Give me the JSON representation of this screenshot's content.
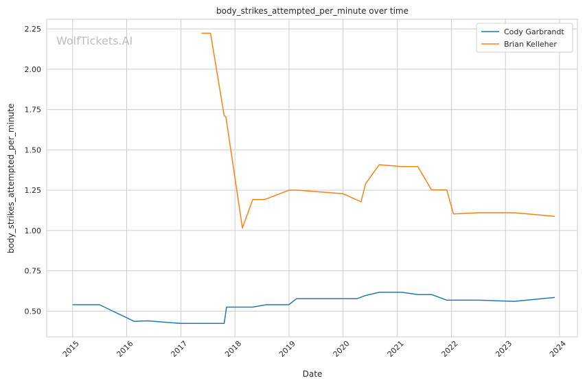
{
  "watermark": "WolfTickets.AI",
  "chart_data": {
    "type": "line",
    "title": "body_strikes_attempted_per_minute over time",
    "xlabel": "Date",
    "ylabel": "body_strikes_attempted_per_minute",
    "xlim": [
      "2014-07-10",
      "2024-05-01"
    ],
    "ylim": [
      0.34,
      2.31
    ],
    "x_ticks": [
      "2015",
      "2016",
      "2017",
      "2018",
      "2019",
      "2020",
      "2021",
      "2022",
      "2023",
      "2024"
    ],
    "y_ticks": [
      "0.50",
      "0.75",
      "1.00",
      "1.25",
      "1.50",
      "1.75",
      "2.00",
      "2.25"
    ],
    "grid": true,
    "legend_position": "top-right",
    "series": [
      {
        "name": "Cody Garbrandt",
        "color": "#1f77b4",
        "points": [
          [
            "2015-01-01",
            0.54
          ],
          [
            "2015-07-01",
            0.54
          ],
          [
            "2016-02-20",
            0.437
          ],
          [
            "2016-05-20",
            0.44
          ],
          [
            "2017-01-01",
            0.424
          ],
          [
            "2017-10-20",
            0.424
          ],
          [
            "2017-11-05",
            0.525
          ],
          [
            "2018-05-01",
            0.525
          ],
          [
            "2018-08-01",
            0.54
          ],
          [
            "2018-12-31",
            0.54
          ],
          [
            "2019-02-20",
            0.577
          ],
          [
            "2020-04-01",
            0.577
          ],
          [
            "2020-06-01",
            0.597
          ],
          [
            "2020-09-01",
            0.617
          ],
          [
            "2021-02-01",
            0.617
          ],
          [
            "2021-05-20",
            0.603
          ],
          [
            "2021-08-20",
            0.603
          ],
          [
            "2021-12-01",
            0.568
          ],
          [
            "2022-07-01",
            0.568
          ],
          [
            "2023-03-01",
            0.561
          ],
          [
            "2023-11-30",
            0.585
          ]
        ]
      },
      {
        "name": "Brian Kelleher",
        "color": "#ff7f0e",
        "points": [
          [
            "2017-05-20",
            2.223
          ],
          [
            "2017-07-20",
            2.223
          ],
          [
            "2017-10-20",
            1.712
          ],
          [
            "2017-11-01",
            1.705
          ],
          [
            "2018-02-20",
            1.016
          ],
          [
            "2018-05-01",
            1.192
          ],
          [
            "2018-07-20",
            1.192
          ],
          [
            "2019-01-01",
            1.25
          ],
          [
            "2019-03-01",
            1.25
          ],
          [
            "2020-01-01",
            1.228
          ],
          [
            "2020-05-01",
            1.178
          ],
          [
            "2020-06-01",
            1.29
          ],
          [
            "2020-09-01",
            1.408
          ],
          [
            "2021-02-01",
            1.396
          ],
          [
            "2021-05-20",
            1.396
          ],
          [
            "2021-08-20",
            1.252
          ],
          [
            "2021-12-01",
            1.252
          ],
          [
            "2022-01-15",
            1.103
          ],
          [
            "2022-07-01",
            1.11
          ],
          [
            "2023-03-01",
            1.11
          ],
          [
            "2023-11-30",
            1.088
          ]
        ]
      }
    ]
  }
}
